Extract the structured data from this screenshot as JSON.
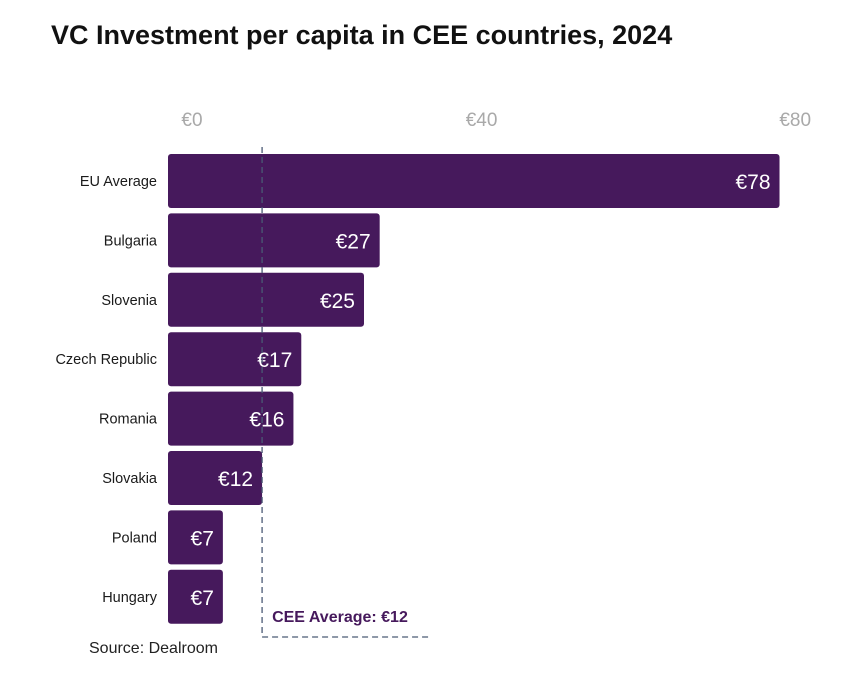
{
  "colors": {
    "bar": "#46195c",
    "average_line": "#4a5a75",
    "average_label": "#46195c",
    "tick": "#a9a9a9"
  },
  "chart_data": {
    "type": "bar",
    "orientation": "horizontal",
    "title": "VC Investment per capita in CEE countries, 2024",
    "categories": [
      "EU Average",
      "Bulgaria",
      "Slovenia",
      "Czech Republic",
      "Romania",
      "Slovakia",
      "Poland",
      "Hungary"
    ],
    "values": [
      78,
      27,
      25,
      17,
      16,
      12,
      7,
      7
    ],
    "value_labels": [
      "€78",
      "€27",
      "€25",
      "€17",
      "€16",
      "€12",
      "€7",
      "€7"
    ],
    "x_ticks": [
      0,
      40,
      80
    ],
    "x_tick_labels": [
      "€0",
      "€40",
      "€80"
    ],
    "xlim": [
      0,
      82
    ],
    "xlabel": "",
    "ylabel": "",
    "grid": false,
    "axis_position": "top",
    "reference_line": {
      "value": 12,
      "label": "CEE Average: €12",
      "style": "dashed"
    },
    "source": "Source: Dealroom"
  }
}
